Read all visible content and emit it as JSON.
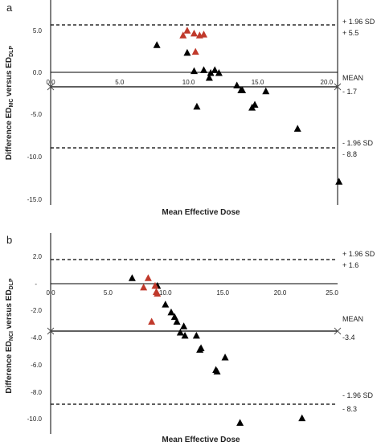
{
  "chart_data": [
    {
      "panel_label": "a",
      "type": "scatter",
      "title": "",
      "xlabel": "Mean Effective Dose",
      "ylabel": {
        "main": "Difference ED",
        "sub1": "MC",
        "mid": " versus ED",
        "sub2": "DLP"
      },
      "xlim": [
        0,
        20.8
      ],
      "ylim": [
        -15,
        6.3
      ],
      "x_ticks": [
        {
          "v": 0,
          "label": "0.0"
        },
        {
          "v": 5,
          "label": "5.0"
        },
        {
          "v": 10,
          "label": "10.0"
        },
        {
          "v": 15,
          "label": "15.0"
        },
        {
          "v": 20,
          "label": "20.0"
        }
      ],
      "y_ticks": [
        {
          "v": 5,
          "label": "5.0"
        },
        {
          "v": 0,
          "label": "0.0"
        },
        {
          "v": -5,
          "label": "-5.0"
        },
        {
          "v": -10,
          "label": "-10.0"
        },
        {
          "v": -15,
          "label": "-15.0"
        }
      ],
      "grid": false,
      "reference_lines": [
        {
          "name": "upper",
          "y": 5.5,
          "style": "dashed",
          "label_lines": [
            "+ 1.96 SD",
            "+ 5.5"
          ]
        },
        {
          "name": "mean",
          "y": -1.7,
          "style": "solid",
          "label_lines": [
            "MEAN",
            "- 1.7"
          ]
        },
        {
          "name": "lower",
          "y": -8.8,
          "style": "dashed",
          "label_lines": [
            "- 1.96 SD",
            "- 8.8"
          ]
        }
      ],
      "series": [
        {
          "color": "#000000",
          "marker": "triangle",
          "points": [
            [
              7.7,
              1.6
            ],
            [
              9.9,
              0.8
            ],
            [
              10.4,
              -1.1
            ],
            [
              10.6,
              -4.8
            ],
            [
              11.1,
              -1.0
            ],
            [
              11.5,
              -1.8
            ],
            [
              11.6,
              -1.3
            ],
            [
              11.9,
              -1.0
            ],
            [
              12.2,
              -1.3
            ],
            [
              13.5,
              -2.6
            ],
            [
              13.8,
              -3.1
            ],
            [
              13.9,
              -3.1
            ],
            [
              14.6,
              -4.9
            ],
            [
              14.8,
              -4.6
            ],
            [
              15.6,
              -3.2
            ],
            [
              17.9,
              -7.1
            ],
            [
              20.9,
              -12.6
            ]
          ]
        },
        {
          "color": "#c0392b",
          "marker": "triangle",
          "points": [
            [
              9.6,
              2.6
            ],
            [
              9.9,
              3.1
            ],
            [
              10.4,
              2.8
            ],
            [
              10.5,
              0.9
            ],
            [
              10.8,
              2.6
            ],
            [
              11.1,
              2.7
            ]
          ]
        }
      ]
    },
    {
      "panel_label": "b",
      "type": "scatter",
      "title": "",
      "xlabel": "Mean Effective Dose",
      "ylabel": {
        "main": "Difference ED",
        "sub1": "NCI",
        "mid": " versus ED",
        "sub2": "DLP"
      },
      "xlim": [
        0,
        25
      ],
      "ylim": [
        -10,
        2.9
      ],
      "x_ticks": [
        {
          "v": 0,
          "label": "0.0"
        },
        {
          "v": 5,
          "label": "5.0"
        },
        {
          "v": 10,
          "label": "10.0"
        },
        {
          "v": 15,
          "label": "15.0"
        },
        {
          "v": 20,
          "label": "20.0"
        },
        {
          "v": 25,
          "label": "25.0"
        }
      ],
      "y_ticks": [
        {
          "v": 2,
          "label": "2.0"
        },
        {
          "v": 0,
          "label": "-"
        },
        {
          "v": -2,
          "label": "-2.0"
        },
        {
          "v": -4,
          "label": "-4.0"
        },
        {
          "v": -6,
          "label": "-6.0"
        },
        {
          "v": -8,
          "label": "-8.0"
        },
        {
          "v": -10,
          "label": "-10.0"
        }
      ],
      "grid": false,
      "reference_lines": [
        {
          "name": "upper",
          "y": 1.6,
          "style": "dashed",
          "label_lines": [
            "+ 1.96 SD",
            "+ 1.6"
          ]
        },
        {
          "name": "mean",
          "y": -3.4,
          "style": "solid",
          "label_lines": [
            "MEAN",
            "-3.4"
          ]
        },
        {
          "name": "lower",
          "y": -8.3,
          "style": "dashed",
          "label_lines": [
            "- 1.96 SD",
            "- 8.3"
          ]
        }
      ],
      "series": [
        {
          "color": "#000000",
          "marker": "triangle",
          "points": [
            [
              7.1,
              0.0
            ],
            [
              9.3,
              -0.5
            ],
            [
              10.0,
              -1.7
            ],
            [
              10.5,
              -2.2
            ],
            [
              10.8,
              -2.5
            ],
            [
              11.0,
              -2.8
            ],
            [
              11.6,
              -3.1
            ],
            [
              11.3,
              -3.5
            ],
            [
              11.7,
              -3.7
            ],
            [
              12.7,
              -3.7
            ],
            [
              13.0,
              -4.6
            ],
            [
              13.1,
              -4.5
            ],
            [
              14.4,
              -5.9
            ],
            [
              14.5,
              -6.0
            ],
            [
              15.2,
              -5.1
            ],
            [
              16.5,
              -9.3
            ],
            [
              21.9,
              -9.0
            ]
          ]
        },
        {
          "color": "#c0392b",
          "marker": "triangle",
          "points": [
            [
              8.1,
              -0.6
            ],
            [
              8.5,
              0.0
            ],
            [
              9.1,
              -0.5
            ],
            [
              9.2,
              -0.9
            ],
            [
              9.3,
              -1.0
            ],
            [
              8.8,
              -2.8
            ]
          ]
        }
      ]
    }
  ]
}
